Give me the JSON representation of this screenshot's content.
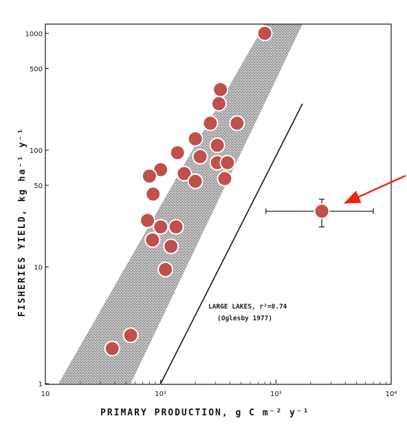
{
  "chart_data": {
    "type": "scatter",
    "x_scale": "log",
    "y_scale": "log",
    "xlim": [
      10,
      10000
    ],
    "ylim": [
      1,
      1200
    ],
    "xlabel": "PRIMARY    PRODUCTION, g C m⁻² y⁻¹",
    "ylabel": "FISHERIES  YIELD,  kg ha⁻¹ y⁻¹",
    "x_ticks": [
      {
        "value": 10,
        "label": "10"
      },
      {
        "value": 100,
        "label": "10²"
      },
      {
        "value": 1000,
        "label": "10³"
      },
      {
        "value": 10000,
        "label": "10⁴"
      }
    ],
    "y_ticks": [
      {
        "value": 1,
        "label": "1"
      },
      {
        "value": 10,
        "label": "10"
      },
      {
        "value": 50,
        "label": "50"
      },
      {
        "value": 100,
        "label": "100"
      },
      {
        "value": 500,
        "label": "500"
      },
      {
        "value": 1000,
        "label": "1000"
      }
    ],
    "annotation_line1": "LARGE LAKES, r²=0.74",
    "annotation_line2": "(Oglesby 1977)",
    "band": {
      "left_edge": [
        [
          13,
          1
        ],
        [
          800,
          1200
        ]
      ],
      "right_edge": [
        [
          55,
          1
        ],
        [
          1700,
          1200
        ]
      ]
    },
    "regression_line": [
      [
        100,
        1
      ],
      [
        1700,
        250
      ]
    ],
    "points": [
      {
        "x": 800,
        "y": 1000
      },
      {
        "x": 330,
        "y": 330
      },
      {
        "x": 320,
        "y": 250
      },
      {
        "x": 270,
        "y": 170
      },
      {
        "x": 460,
        "y": 170
      },
      {
        "x": 200,
        "y": 125
      },
      {
        "x": 310,
        "y": 110
      },
      {
        "x": 140,
        "y": 95
      },
      {
        "x": 220,
        "y": 88
      },
      {
        "x": 310,
        "y": 78
      },
      {
        "x": 380,
        "y": 78
      },
      {
        "x": 100,
        "y": 68
      },
      {
        "x": 160,
        "y": 63
      },
      {
        "x": 80,
        "y": 60
      },
      {
        "x": 360,
        "y": 57
      },
      {
        "x": 200,
        "y": 54
      },
      {
        "x": 86,
        "y": 42
      },
      {
        "x": 77,
        "y": 25
      },
      {
        "x": 100,
        "y": 22
      },
      {
        "x": 136,
        "y": 22
      },
      {
        "x": 85,
        "y": 17
      },
      {
        "x": 123,
        "y": 15
      },
      {
        "x": 110,
        "y": 9.5
      },
      {
        "x": 55,
        "y": 2.6
      },
      {
        "x": 38,
        "y": 2.0
      }
    ],
    "highlight_point": {
      "x": 2500,
      "y": 30,
      "x_err": [
        820,
        7000
      ],
      "y_err": [
        22,
        38
      ],
      "arrow_color": "#ee2211"
    },
    "colors": {
      "point_fill": "#c0504d",
      "point_stroke": "#ffffff",
      "band_fill": "#9a9a9a",
      "axis": "#111111"
    }
  }
}
